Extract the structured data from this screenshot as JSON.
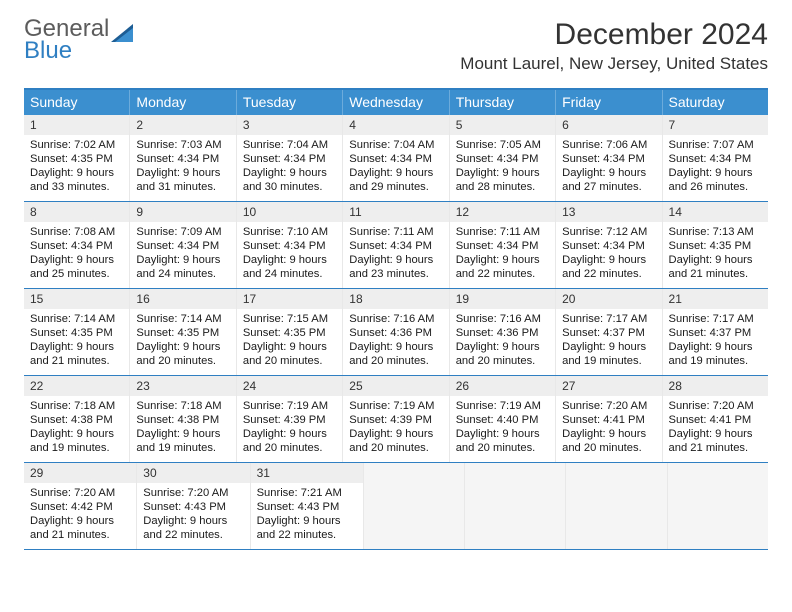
{
  "logo": {
    "line1": "General",
    "line2": "Blue",
    "gray_color": "#5c5c5c",
    "blue_color": "#2f7fc2",
    "tri1_color": "#1d5d94",
    "tri2_color": "#3b8fcf"
  },
  "title": "December 2024",
  "subtitle": "Mount Laurel, New Jersey, United States",
  "theme": {
    "header_bg": "#3b8fcf",
    "header_text": "#ffffff",
    "row_border": "#2f7fc2",
    "daynum_bg": "#eeeeee",
    "empty_bg": "#f5f5f5"
  },
  "weekdays": [
    "Sunday",
    "Monday",
    "Tuesday",
    "Wednesday",
    "Thursday",
    "Friday",
    "Saturday"
  ],
  "weeks": [
    [
      {
        "n": "1",
        "sr": "7:02 AM",
        "ss": "4:35 PM",
        "dl": "9 hours and 33 minutes."
      },
      {
        "n": "2",
        "sr": "7:03 AM",
        "ss": "4:34 PM",
        "dl": "9 hours and 31 minutes."
      },
      {
        "n": "3",
        "sr": "7:04 AM",
        "ss": "4:34 PM",
        "dl": "9 hours and 30 minutes."
      },
      {
        "n": "4",
        "sr": "7:04 AM",
        "ss": "4:34 PM",
        "dl": "9 hours and 29 minutes."
      },
      {
        "n": "5",
        "sr": "7:05 AM",
        "ss": "4:34 PM",
        "dl": "9 hours and 28 minutes."
      },
      {
        "n": "6",
        "sr": "7:06 AM",
        "ss": "4:34 PM",
        "dl": "9 hours and 27 minutes."
      },
      {
        "n": "7",
        "sr": "7:07 AM",
        "ss": "4:34 PM",
        "dl": "9 hours and 26 minutes."
      }
    ],
    [
      {
        "n": "8",
        "sr": "7:08 AM",
        "ss": "4:34 PM",
        "dl": "9 hours and 25 minutes."
      },
      {
        "n": "9",
        "sr": "7:09 AM",
        "ss": "4:34 PM",
        "dl": "9 hours and 24 minutes."
      },
      {
        "n": "10",
        "sr": "7:10 AM",
        "ss": "4:34 PM",
        "dl": "9 hours and 24 minutes."
      },
      {
        "n": "11",
        "sr": "7:11 AM",
        "ss": "4:34 PM",
        "dl": "9 hours and 23 minutes."
      },
      {
        "n": "12",
        "sr": "7:11 AM",
        "ss": "4:34 PM",
        "dl": "9 hours and 22 minutes."
      },
      {
        "n": "13",
        "sr": "7:12 AM",
        "ss": "4:34 PM",
        "dl": "9 hours and 22 minutes."
      },
      {
        "n": "14",
        "sr": "7:13 AM",
        "ss": "4:35 PM",
        "dl": "9 hours and 21 minutes."
      }
    ],
    [
      {
        "n": "15",
        "sr": "7:14 AM",
        "ss": "4:35 PM",
        "dl": "9 hours and 21 minutes."
      },
      {
        "n": "16",
        "sr": "7:14 AM",
        "ss": "4:35 PM",
        "dl": "9 hours and 20 minutes."
      },
      {
        "n": "17",
        "sr": "7:15 AM",
        "ss": "4:35 PM",
        "dl": "9 hours and 20 minutes."
      },
      {
        "n": "18",
        "sr": "7:16 AM",
        "ss": "4:36 PM",
        "dl": "9 hours and 20 minutes."
      },
      {
        "n": "19",
        "sr": "7:16 AM",
        "ss": "4:36 PM",
        "dl": "9 hours and 20 minutes."
      },
      {
        "n": "20",
        "sr": "7:17 AM",
        "ss": "4:37 PM",
        "dl": "9 hours and 19 minutes."
      },
      {
        "n": "21",
        "sr": "7:17 AM",
        "ss": "4:37 PM",
        "dl": "9 hours and 19 minutes."
      }
    ],
    [
      {
        "n": "22",
        "sr": "7:18 AM",
        "ss": "4:38 PM",
        "dl": "9 hours and 19 minutes."
      },
      {
        "n": "23",
        "sr": "7:18 AM",
        "ss": "4:38 PM",
        "dl": "9 hours and 19 minutes."
      },
      {
        "n": "24",
        "sr": "7:19 AM",
        "ss": "4:39 PM",
        "dl": "9 hours and 20 minutes."
      },
      {
        "n": "25",
        "sr": "7:19 AM",
        "ss": "4:39 PM",
        "dl": "9 hours and 20 minutes."
      },
      {
        "n": "26",
        "sr": "7:19 AM",
        "ss": "4:40 PM",
        "dl": "9 hours and 20 minutes."
      },
      {
        "n": "27",
        "sr": "7:20 AM",
        "ss": "4:41 PM",
        "dl": "9 hours and 20 minutes."
      },
      {
        "n": "28",
        "sr": "7:20 AM",
        "ss": "4:41 PM",
        "dl": "9 hours and 21 minutes."
      }
    ],
    [
      {
        "n": "29",
        "sr": "7:20 AM",
        "ss": "4:42 PM",
        "dl": "9 hours and 21 minutes."
      },
      {
        "n": "30",
        "sr": "7:20 AM",
        "ss": "4:43 PM",
        "dl": "9 hours and 22 minutes."
      },
      {
        "n": "31",
        "sr": "7:21 AM",
        "ss": "4:43 PM",
        "dl": "9 hours and 22 minutes."
      },
      null,
      null,
      null,
      null
    ]
  ],
  "labels": {
    "sunrise": "Sunrise:",
    "sunset": "Sunset:",
    "daylight": "Daylight:"
  }
}
